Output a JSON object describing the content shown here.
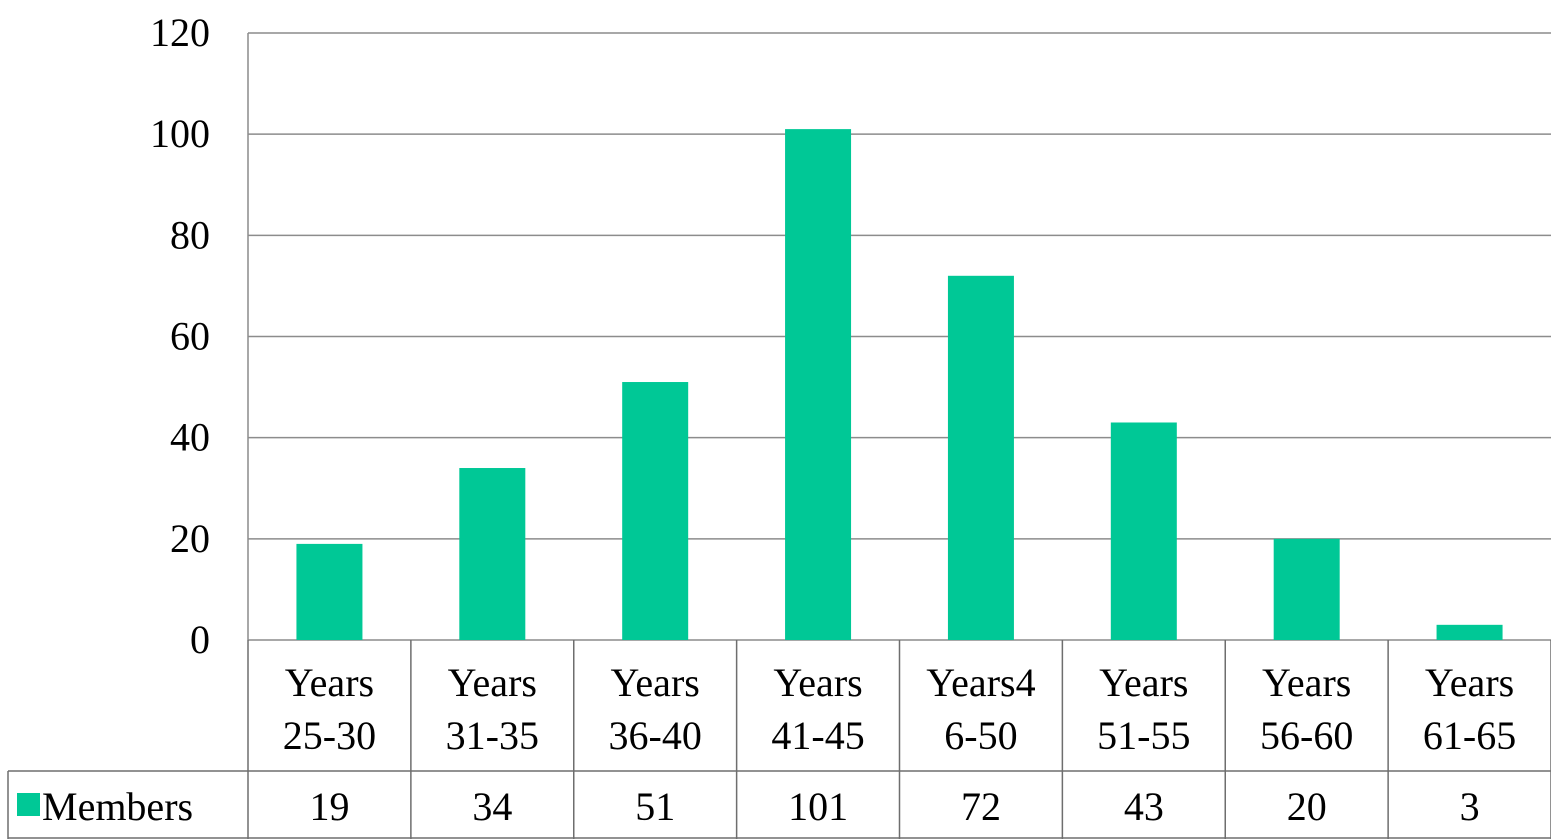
{
  "chart_data": {
    "type": "bar",
    "categories": [
      [
        "Years",
        "25-30"
      ],
      [
        "Years",
        "31-35"
      ],
      [
        "Years",
        "36-40"
      ],
      [
        "Years",
        "41-45"
      ],
      [
        "Years4",
        "6-50"
      ],
      [
        "Years",
        "51-55"
      ],
      [
        "Years",
        "56-60"
      ],
      [
        "Years",
        "61-65"
      ]
    ],
    "series": [
      {
        "name": "Members",
        "values": [
          19,
          34,
          51,
          101,
          72,
          43,
          20,
          3
        ],
        "color": "#00C896"
      }
    ],
    "ylim": [
      0,
      120
    ],
    "yticks": [
      "0",
      "20",
      "40",
      "60",
      "80",
      "100",
      "120"
    ],
    "grid": true,
    "legend": "data-table",
    "data_table": true
  }
}
